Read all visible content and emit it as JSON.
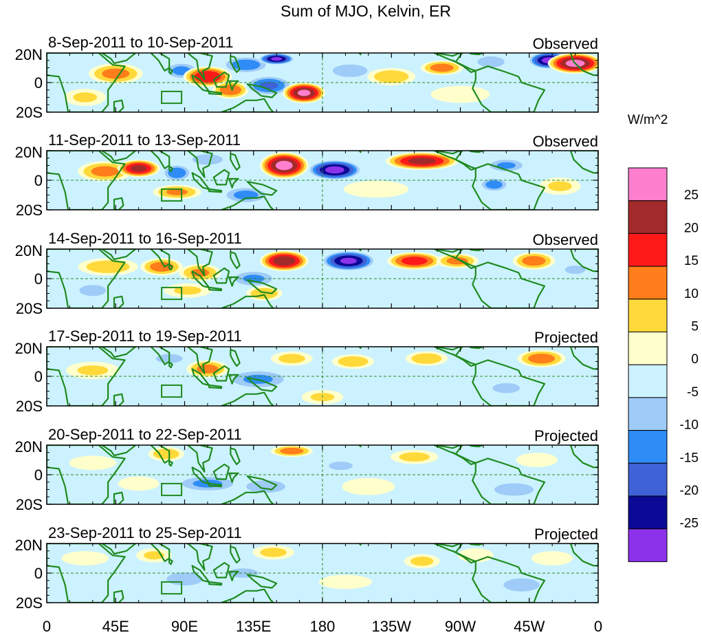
{
  "chart_data": {
    "type": "heatmap",
    "title": "Sum of MJO, Kelvin, ER",
    "units_label": "W/m^2",
    "x_ticks": [
      "0",
      "45E",
      "90E",
      "135E",
      "180",
      "135W",
      "90W",
      "45W",
      "0"
    ],
    "x_tick_lon": [
      0,
      45,
      90,
      135,
      180,
      225,
      270,
      315,
      360
    ],
    "y_ticks": [
      "20N",
      "0",
      "20S"
    ],
    "y_tick_lat": [
      20,
      0,
      -20
    ],
    "lat_range": [
      -20,
      20
    ],
    "lon_range": [
      0,
      360
    ],
    "colorbar": {
      "labels": [
        "25",
        "20",
        "15",
        "10",
        "5",
        "0",
        "-5",
        "-10",
        "-15",
        "-20",
        "-25"
      ],
      "levels": [
        25,
        20,
        15,
        10,
        5,
        0,
        -5,
        -10,
        -15,
        -20,
        -25
      ],
      "colors": [
        "#ff7fcf",
        "#a32a2a",
        "#ff1a1a",
        "#ff7d1a",
        "#ffd93a",
        "#ffffcc",
        "#ccf2ff",
        "#9ecbf7",
        "#2f8cf7",
        "#3f62d6",
        "#0a0a96",
        "#8c32eb"
      ]
    },
    "panels": [
      {
        "date": "8-Sep-2011 to 10-Sep-2011",
        "label": "Observed",
        "blobs": [
          {
            "lon": 45,
            "lat": 6,
            "rlon": 18,
            "rlat": 7,
            "v": 12
          },
          {
            "lon": 88,
            "lat": 8,
            "rlon": 12,
            "rlat": 6,
            "v": -12
          },
          {
            "lon": 105,
            "lat": 4,
            "rlon": 16,
            "rlat": 7,
            "v": 20
          },
          {
            "lon": 120,
            "lat": -5,
            "rlon": 12,
            "rlat": 6,
            "v": 14
          },
          {
            "lon": 130,
            "lat": 12,
            "rlon": 16,
            "rlat": 6,
            "v": -14
          },
          {
            "lon": 145,
            "lat": -2,
            "rlon": 16,
            "rlat": 7,
            "v": -16
          },
          {
            "lon": 150,
            "lat": 16,
            "rlon": 12,
            "rlat": 4,
            "v": -26
          },
          {
            "lon": 168,
            "lat": -7,
            "rlon": 14,
            "rlat": 7,
            "v": 26
          },
          {
            "lon": 198,
            "lat": 8,
            "rlon": 16,
            "rlat": 6,
            "v": -9
          },
          {
            "lon": 225,
            "lat": 4,
            "rlon": 16,
            "rlat": 6,
            "v": 9
          },
          {
            "lon": 258,
            "lat": 10,
            "rlon": 14,
            "rlat": 5,
            "v": 13
          },
          {
            "lon": 290,
            "lat": 14,
            "rlon": 12,
            "rlat": 5,
            "v": -10
          },
          {
            "lon": 328,
            "lat": 15,
            "rlon": 14,
            "rlat": 6,
            "v": -27
          },
          {
            "lon": 345,
            "lat": 13,
            "rlon": 18,
            "rlat": 7,
            "v": 27
          },
          {
            "lon": 25,
            "lat": -10,
            "rlon": 14,
            "rlat": 6,
            "v": 6
          },
          {
            "lon": 270,
            "lat": -8,
            "rlon": 20,
            "rlat": 6,
            "v": 5
          },
          {
            "lon": 320,
            "lat": -12,
            "rlon": 16,
            "rlat": 6,
            "v": -5
          }
        ]
      },
      {
        "date": "11-Sep-2011 to 13-Sep-2011",
        "label": "Observed",
        "blobs": [
          {
            "lon": 38,
            "lat": 6,
            "rlon": 18,
            "rlat": 7,
            "v": 12
          },
          {
            "lon": 60,
            "lat": 8,
            "rlon": 14,
            "rlat": 6,
            "v": 22
          },
          {
            "lon": 85,
            "lat": 5,
            "rlon": 10,
            "rlat": 6,
            "v": -14
          },
          {
            "lon": 105,
            "lat": 14,
            "rlon": 14,
            "rlat": 5,
            "v": -9
          },
          {
            "lon": 130,
            "lat": -10,
            "rlon": 16,
            "rlat": 6,
            "v": -12
          },
          {
            "lon": 155,
            "lat": 10,
            "rlon": 16,
            "rlat": 9,
            "v": 27
          },
          {
            "lon": 188,
            "lat": 7,
            "rlon": 18,
            "rlat": 7,
            "v": -27
          },
          {
            "lon": 245,
            "lat": 13,
            "rlon": 24,
            "rlat": 6,
            "v": 22
          },
          {
            "lon": 292,
            "lat": -3,
            "rlon": 10,
            "rlat": 5,
            "v": -13
          },
          {
            "lon": 300,
            "lat": 10,
            "rlon": 14,
            "rlat": 5,
            "v": -11
          },
          {
            "lon": 85,
            "lat": -8,
            "rlon": 16,
            "rlat": 5,
            "v": 11
          },
          {
            "lon": 215,
            "lat": -6,
            "rlon": 22,
            "rlat": 6,
            "v": 5
          },
          {
            "lon": 335,
            "lat": -4,
            "rlon": 14,
            "rlat": 6,
            "v": 6
          },
          {
            "lon": 20,
            "lat": -12,
            "rlon": 10,
            "rlat": 6,
            "v": -5
          }
        ]
      },
      {
        "date": "14-Sep-2011 to 16-Sep-2011",
        "label": "Observed",
        "blobs": [
          {
            "lon": 40,
            "lat": 8,
            "rlon": 20,
            "rlat": 6,
            "v": 9
          },
          {
            "lon": 75,
            "lat": 8,
            "rlon": 14,
            "rlat": 6,
            "v": 13
          },
          {
            "lon": 100,
            "lat": 4,
            "rlon": 14,
            "rlat": 6,
            "v": 11
          },
          {
            "lon": 135,
            "lat": 0,
            "rlon": 16,
            "rlat": 6,
            "v": -11
          },
          {
            "lon": 155,
            "lat": 12,
            "rlon": 16,
            "rlat": 7,
            "v": 24
          },
          {
            "lon": 142,
            "lat": -10,
            "rlon": 12,
            "rlat": 5,
            "v": 10
          },
          {
            "lon": 197,
            "lat": 12,
            "rlon": 18,
            "rlat": 7,
            "v": -26
          },
          {
            "lon": 240,
            "lat": 12,
            "rlon": 18,
            "rlat": 6,
            "v": 18
          },
          {
            "lon": 268,
            "lat": 12,
            "rlon": 14,
            "rlat": 5,
            "v": 12
          },
          {
            "lon": 318,
            "lat": 12,
            "rlon": 14,
            "rlat": 6,
            "v": 13
          },
          {
            "lon": 30,
            "lat": -8,
            "rlon": 14,
            "rlat": 6,
            "v": -7
          },
          {
            "lon": 92,
            "lat": -8,
            "rlon": 16,
            "rlat": 5,
            "v": 6
          },
          {
            "lon": 230,
            "lat": -6,
            "rlon": 20,
            "rlat": 6,
            "v": -4
          },
          {
            "lon": 345,
            "lat": 6,
            "rlon": 12,
            "rlat": 5,
            "v": -6
          }
        ]
      },
      {
        "date": "17-Sep-2011 to 19-Sep-2011",
        "label": "Projected",
        "blobs": [
          {
            "lon": 30,
            "lat": 4,
            "rlon": 18,
            "rlat": 6,
            "v": 6
          },
          {
            "lon": 80,
            "lat": 12,
            "rlon": 14,
            "rlat": 5,
            "v": -7
          },
          {
            "lon": 105,
            "lat": 5,
            "rlon": 14,
            "rlat": 6,
            "v": 12
          },
          {
            "lon": 138,
            "lat": -2,
            "rlon": 22,
            "rlat": 7,
            "v": -11
          },
          {
            "lon": 160,
            "lat": 12,
            "rlon": 14,
            "rlat": 5,
            "v": 7
          },
          {
            "lon": 200,
            "lat": 10,
            "rlon": 14,
            "rlat": 5,
            "v": 9
          },
          {
            "lon": 248,
            "lat": 12,
            "rlon": 14,
            "rlat": 5,
            "v": 9
          },
          {
            "lon": 323,
            "lat": 12,
            "rlon": 16,
            "rlat": 6,
            "v": 13
          },
          {
            "lon": 180,
            "lat": -14,
            "rlon": 14,
            "rlat": 5,
            "v": 6
          },
          {
            "lon": 230,
            "lat": -4,
            "rlon": 22,
            "rlat": 6,
            "v": -5
          },
          {
            "lon": 300,
            "lat": -8,
            "rlon": 16,
            "rlat": 6,
            "v": -6
          },
          {
            "lon": 40,
            "lat": -10,
            "rlon": 12,
            "rlat": 5,
            "v": -5
          }
        ]
      },
      {
        "date": "20-Sep-2011 to 22-Sep-2011",
        "label": "Projected",
        "blobs": [
          {
            "lon": 30,
            "lat": 8,
            "rlon": 16,
            "rlat": 5,
            "v": 5
          },
          {
            "lon": 78,
            "lat": 14,
            "rlon": 12,
            "rlat": 5,
            "v": 9
          },
          {
            "lon": 105,
            "lat": -6,
            "rlon": 22,
            "rlat": 6,
            "v": -11
          },
          {
            "lon": 143,
            "lat": -8,
            "rlon": 18,
            "rlat": 6,
            "v": -9
          },
          {
            "lon": 160,
            "lat": 16,
            "rlon": 14,
            "rlat": 4,
            "v": 13
          },
          {
            "lon": 192,
            "lat": 6,
            "rlon": 14,
            "rlat": 5,
            "v": -6
          },
          {
            "lon": 240,
            "lat": 12,
            "rlon": 16,
            "rlat": 5,
            "v": 7
          },
          {
            "lon": 305,
            "lat": -10,
            "rlon": 18,
            "rlat": 6,
            "v": -9
          },
          {
            "lon": 320,
            "lat": 10,
            "rlon": 14,
            "rlat": 5,
            "v": 5
          },
          {
            "lon": 60,
            "lat": -6,
            "rlon": 14,
            "rlat": 5,
            "v": 4
          },
          {
            "lon": 210,
            "lat": -8,
            "rlon": 18,
            "rlat": 6,
            "v": 4
          }
        ]
      },
      {
        "date": "23-Sep-2011 to 25-Sep-2011",
        "label": "Projected",
        "blobs": [
          {
            "lon": 25,
            "lat": 10,
            "rlon": 16,
            "rlat": 5,
            "v": 5
          },
          {
            "lon": 70,
            "lat": 12,
            "rlon": 12,
            "rlat": 5,
            "v": 6
          },
          {
            "lon": 90,
            "lat": -4,
            "rlon": 16,
            "rlat": 6,
            "v": -10
          },
          {
            "lon": 128,
            "lat": 0,
            "rlon": 16,
            "rlat": 5,
            "v": -7
          },
          {
            "lon": 148,
            "lat": 14,
            "rlon": 14,
            "rlat": 5,
            "v": 7
          },
          {
            "lon": 245,
            "lat": 8,
            "rlon": 12,
            "rlat": 5,
            "v": 7
          },
          {
            "lon": 280,
            "lat": 12,
            "rlon": 12,
            "rlat": 5,
            "v": 5
          },
          {
            "lon": 310,
            "lat": -8,
            "rlon": 16,
            "rlat": 6,
            "v": -10
          },
          {
            "lon": 330,
            "lat": 10,
            "rlon": 14,
            "rlat": 5,
            "v": 5
          },
          {
            "lon": 195,
            "lat": -6,
            "rlon": 18,
            "rlat": 5,
            "v": 4
          },
          {
            "lon": 40,
            "lat": -10,
            "rlon": 12,
            "rlat": 5,
            "v": -4
          }
        ]
      }
    ]
  }
}
